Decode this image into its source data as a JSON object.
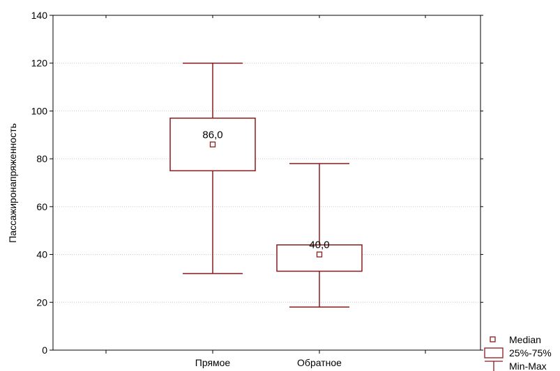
{
  "chart_data": {
    "type": "boxplot",
    "ylabel": "Пассажиронапряженность",
    "ylim": [
      0,
      140
    ],
    "yticks": [
      0,
      20,
      40,
      60,
      80,
      100,
      120,
      140
    ],
    "grid": "horizontal dotted",
    "categories": [
      "Прямое",
      "Обратное"
    ],
    "boxes": [
      {
        "category": "Прямое",
        "min": 32,
        "q1": 75,
        "median": 86,
        "q3": 97,
        "max": 120,
        "median_label": "86,0"
      },
      {
        "category": "Обратное",
        "min": 18,
        "q1": 33,
        "median": 40,
        "q3": 44,
        "max": 78,
        "median_label": "40,0"
      }
    ],
    "legend": {
      "position": "bottom-right",
      "items": [
        {
          "symbol": "median-square",
          "label": "Median"
        },
        {
          "symbol": "box",
          "label": "25%-75%"
        },
        {
          "symbol": "whisker",
          "label": "Min-Max"
        }
      ]
    },
    "colors": {
      "box": "#8b1a1a",
      "grid": "#c8c8c8",
      "axis": "#000000"
    }
  }
}
